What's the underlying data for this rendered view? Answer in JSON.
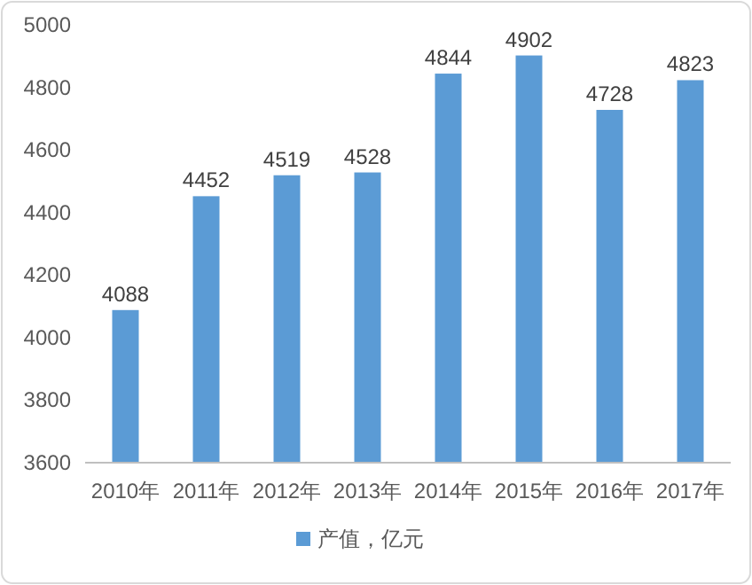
{
  "chart_data": {
    "type": "bar",
    "categories": [
      "2010年",
      "2011年",
      "2012年",
      "2013年",
      "2014年",
      "2015年",
      "2016年",
      "2017年"
    ],
    "series": [
      {
        "name": "产值，亿元",
        "color": "#5b9bd5",
        "values": [
          4088,
          4452,
          4519,
          4528,
          4844,
          4902,
          4728,
          4823
        ]
      }
    ],
    "ylim": [
      3600,
      5000
    ],
    "yticks": [
      3600,
      3800,
      4000,
      4200,
      4400,
      4600,
      4800,
      5000
    ],
    "data_labels": true,
    "legend": "bottom"
  }
}
